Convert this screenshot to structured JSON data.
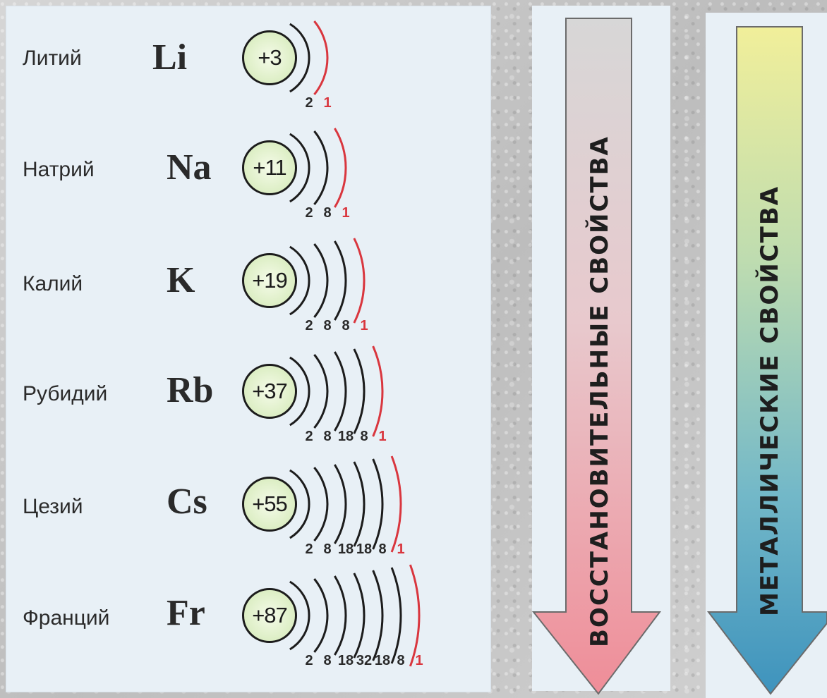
{
  "elements": [
    {
      "name": "Литий",
      "symbol": "Li",
      "charge": "+3",
      "shells": [
        "2",
        "1"
      ]
    },
    {
      "name": "Натрий",
      "symbol": "Na",
      "charge": "+11",
      "shells": [
        "2",
        "8",
        "1"
      ]
    },
    {
      "name": "Калий",
      "symbol": "K",
      "charge": "+19",
      "shells": [
        "2",
        "8",
        "8",
        "1"
      ]
    },
    {
      "name": "Рубидий",
      "symbol": "Rb",
      "charge": "+37",
      "shells": [
        "2",
        "8",
        "18",
        "8",
        "1"
      ]
    },
    {
      "name": "Цезий",
      "symbol": "Cs",
      "charge": "+55",
      "shells": [
        "2",
        "8",
        "18",
        "18",
        "8",
        "1"
      ]
    },
    {
      "name": "Франций",
      "symbol": "Fr",
      "charge": "+87",
      "shells": [
        "2",
        "8",
        "18",
        "32",
        "18",
        "8",
        "1"
      ]
    }
  ],
  "arrows": {
    "reducing": {
      "label": "ВОССТАНОВИТЕЛЬНЫЕ  СВОЙСТВА"
    },
    "metallic": {
      "label": "МЕТАЛЛИЧЕСКИЕ  СВОЙСТВА"
    }
  },
  "colors": {
    "inner_shell": "#1c1c1c",
    "outer_shell": "#d9363e"
  }
}
